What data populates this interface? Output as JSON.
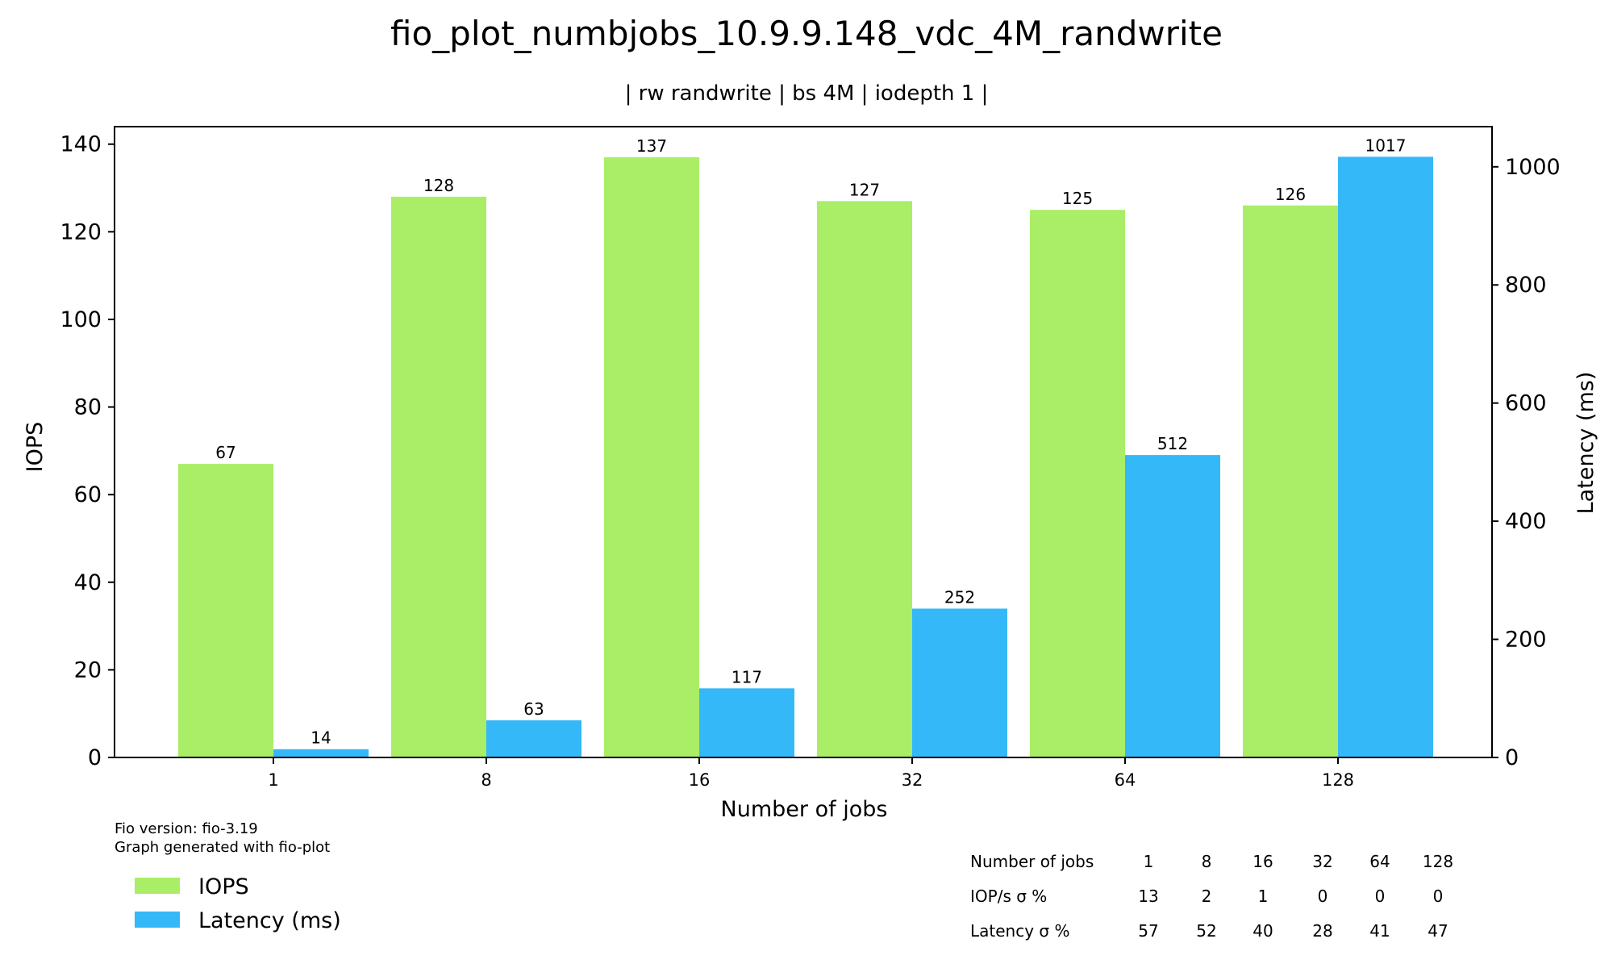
{
  "chart_data": {
    "type": "bar",
    "title": "fio_plot_numbjobs_10.9.9.148_vdc_4M_randwrite",
    "subtitle": "| rw randwrite | bs 4M | iodepth 1 |",
    "xlabel": "Number of jobs",
    "ylabel": "IOPS",
    "y2label": "Latency (ms)",
    "categories": [
      "1",
      "8",
      "16",
      "32",
      "64",
      "128"
    ],
    "ylim": [
      0,
      144
    ],
    "y2lim": [
      0,
      1068
    ],
    "yticks": [
      0,
      20,
      40,
      60,
      80,
      100,
      120,
      140
    ],
    "y2ticks": [
      0,
      200,
      400,
      600,
      800,
      1000
    ],
    "grid": false,
    "legend_position": "bottom-left",
    "series": [
      {
        "name": "IOPS",
        "axis": "left",
        "color": "#aaed66",
        "values": [
          67,
          128,
          137,
          127,
          125,
          126
        ]
      },
      {
        "name": "Latency (ms)",
        "axis": "right",
        "color": "#35b8f8",
        "values": [
          14,
          63,
          117,
          252,
          512,
          1017
        ]
      }
    ]
  },
  "footnote": {
    "line1": "Fio version: fio-3.19",
    "line2": "Graph generated with fio-plot"
  },
  "stats_table": {
    "rows": [
      {
        "label": "Number of jobs",
        "values": [
          "1",
          "8",
          "16",
          "32",
          "64",
          "128"
        ]
      },
      {
        "label": "IOP/s σ %",
        "values": [
          "13",
          "2",
          "1",
          "0",
          "0",
          "0"
        ]
      },
      {
        "label": "Latency σ %",
        "values": [
          "57",
          "52",
          "40",
          "28",
          "41",
          "47"
        ]
      }
    ]
  }
}
